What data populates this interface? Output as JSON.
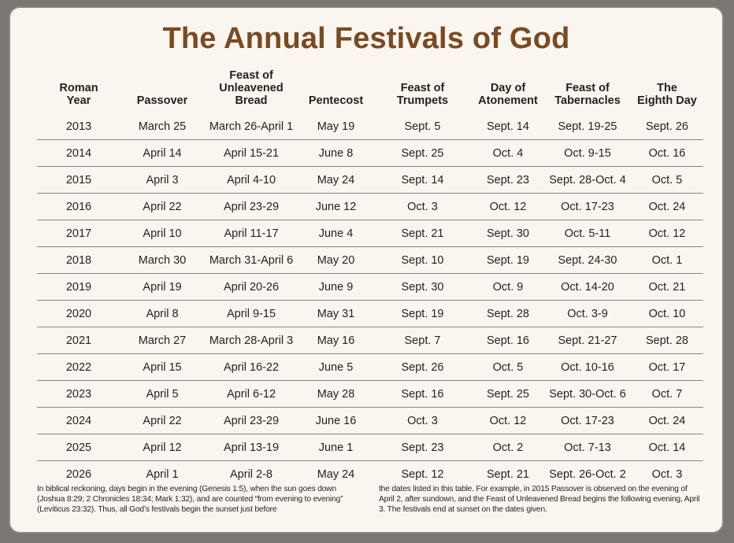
{
  "title": "The Annual Festivals of God",
  "headers": [
    "Roman\nYear",
    "Passover",
    "Feast of\nUnleavened\nBread",
    "Pentecost",
    "Feast of\nTrumpets",
    "Day of\nAtonement",
    "Feast of\nTabernacles",
    "The\nEighth Day"
  ],
  "rows": [
    [
      "2013",
      "March 25",
      "March 26-April 1",
      "May 19",
      "Sept. 5",
      "Sept. 14",
      "Sept. 19-25",
      "Sept. 26"
    ],
    [
      "2014",
      "April 14",
      "April 15-21",
      "June 8",
      "Sept. 25",
      "Oct. 4",
      "Oct. 9-15",
      "Oct. 16"
    ],
    [
      "2015",
      "April 3",
      "April 4-10",
      "May 24",
      "Sept. 14",
      "Sept. 23",
      "Sept. 28-Oct. 4",
      "Oct. 5"
    ],
    [
      "2016",
      "April 22",
      "April 23-29",
      "June 12",
      "Oct. 3",
      "Oct. 12",
      "Oct. 17-23",
      "Oct. 24"
    ],
    [
      "2017",
      "April 10",
      "April 11-17",
      "June 4",
      "Sept. 21",
      "Sept. 30",
      "Oct. 5-11",
      "Oct. 12"
    ],
    [
      "2018",
      "March 30",
      "March 31-April 6",
      "May 20",
      "Sept. 10",
      "Sept. 19",
      "Sept. 24-30",
      "Oct. 1"
    ],
    [
      "2019",
      "April 19",
      "April 20-26",
      "June 9",
      "Sept. 30",
      "Oct. 9",
      "Oct. 14-20",
      "Oct. 21"
    ],
    [
      "2020",
      "April 8",
      "April 9-15",
      "May 31",
      "Sept. 19",
      "Sept. 28",
      "Oct. 3-9",
      "Oct. 10"
    ],
    [
      "2021",
      "March 27",
      "March 28-April 3",
      "May 16",
      "Sept. 7",
      "Sept. 16",
      "Sept. 21-27",
      "Sept. 28"
    ],
    [
      "2022",
      "April 15",
      "April 16-22",
      "June 5",
      "Sept. 26",
      "Oct. 5",
      "Oct. 10-16",
      "Oct. 17"
    ],
    [
      "2023",
      "April 5",
      "April 6-12",
      "May 28",
      "Sept. 16",
      "Sept. 25",
      "Sept. 30-Oct. 6",
      "Oct. 7"
    ],
    [
      "2024",
      "April 22",
      "April 23-29",
      "June 16",
      "Oct. 3",
      "Oct. 12",
      "Oct. 17-23",
      "Oct. 24"
    ],
    [
      "2025",
      "April 12",
      "April 13-19",
      "June 1",
      "Sept. 23",
      "Oct. 2",
      "Oct. 7-13",
      "Oct. 14"
    ],
    [
      "2026",
      "April 1",
      "April 2-8",
      "May 24",
      "Sept. 12",
      "Sept. 21",
      "Sept. 26-Oct. 2",
      "Oct. 3"
    ]
  ],
  "footnote_left": "In biblical reckoning, days begin in the evening (Genesis 1:5), when the sun goes down (Joshua 8:29; 2 Chronicles 18:34; Mark 1:32), and are counted “from evening to evening” (Leviticus 23:32). Thus, all God’s festivals begin the sunset just before",
  "footnote_right": "the dates listed in this table. For example, in 2015 Passover is observed on the evening of April 2, after sundown, and the Feast of Unleavened Bread begins the following evening, April 3. The festivals end at sunset on the dates given.",
  "colors": {
    "title": "#7a4a22",
    "card_background": "#faf6ef",
    "frame": "#7a7672",
    "rule": "#8a8480"
  }
}
